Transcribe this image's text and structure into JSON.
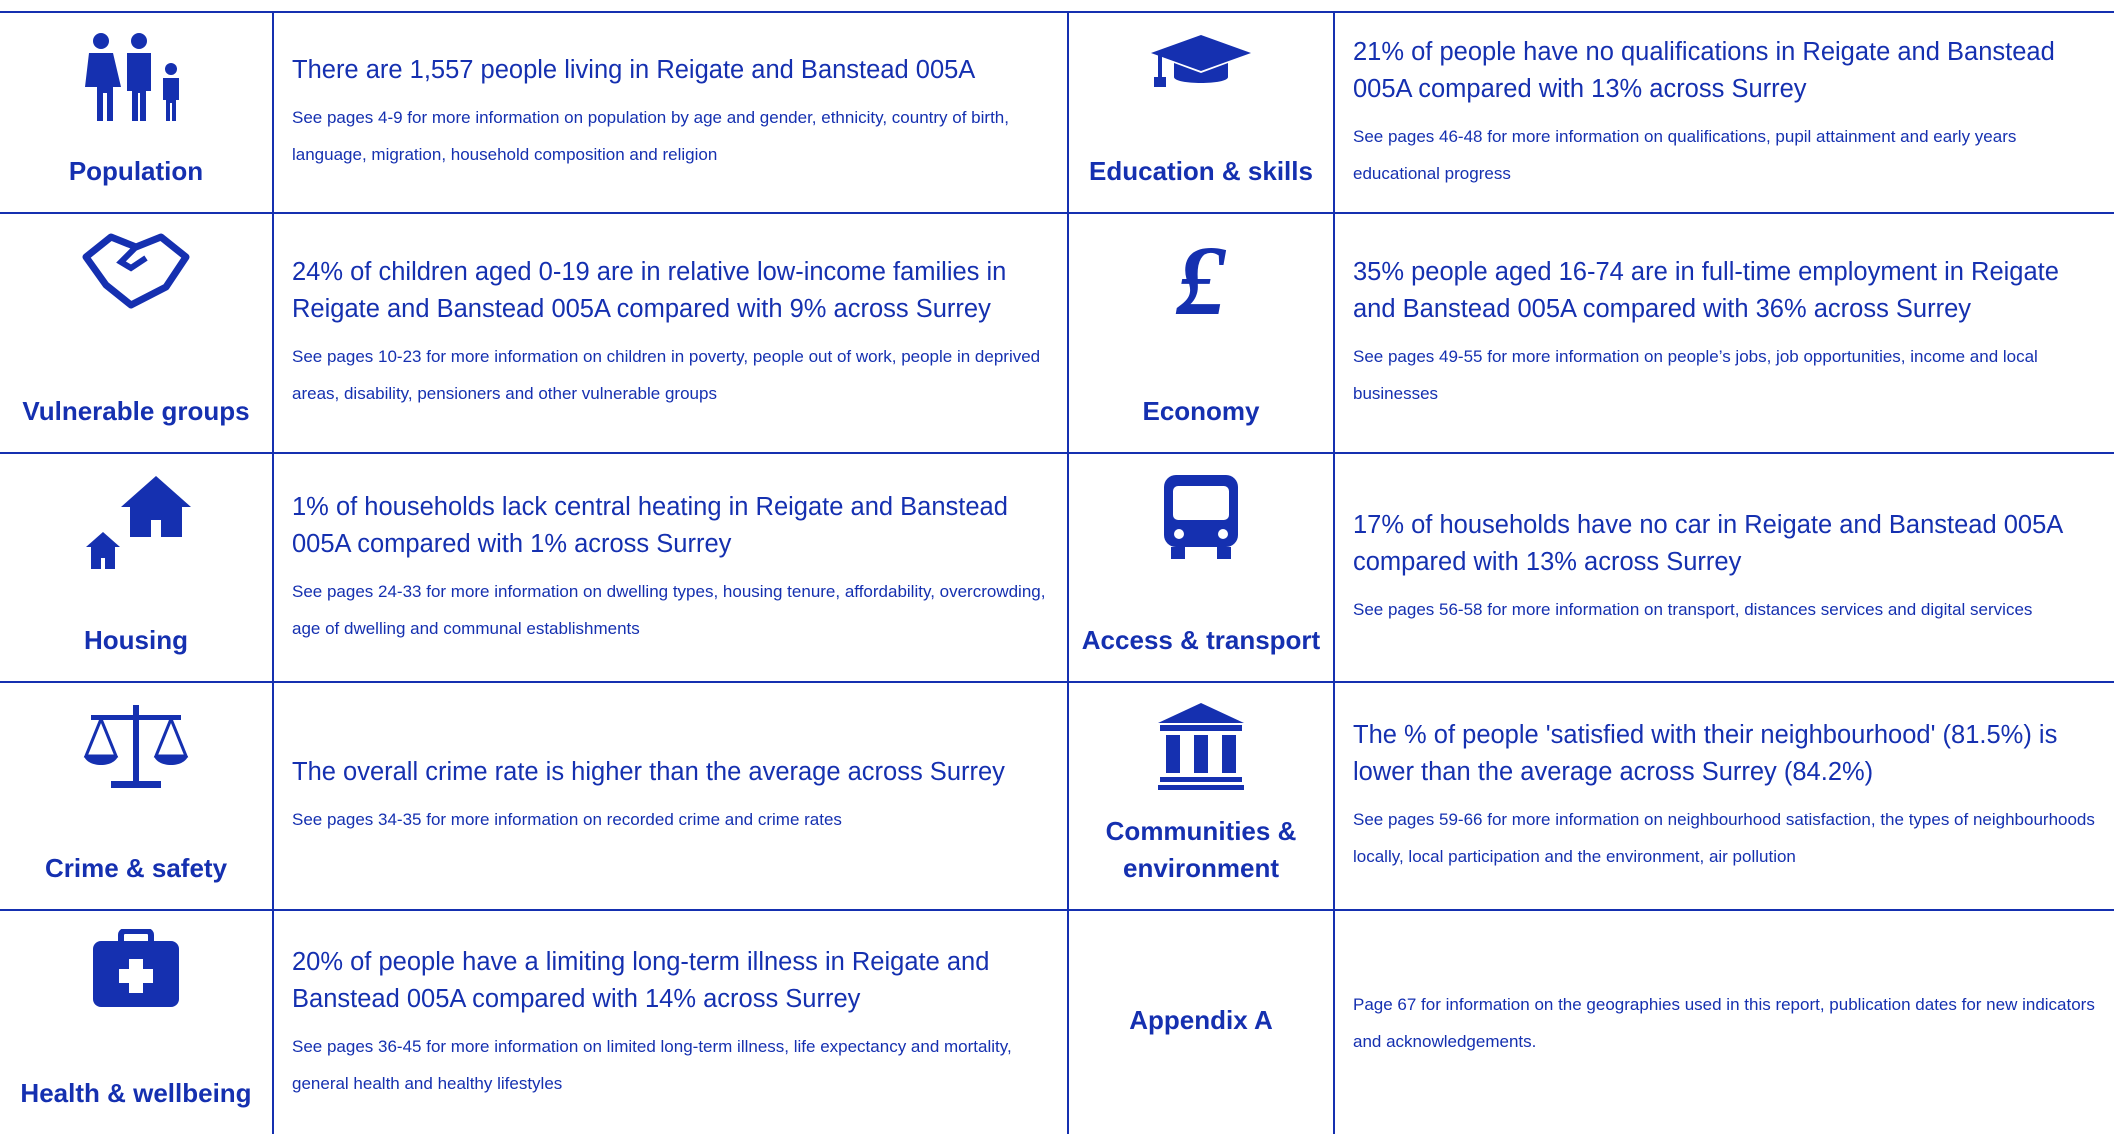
{
  "rows": [
    {
      "left": {
        "label": "Population",
        "headline": "There are 1,557 people living in Reigate and Banstead 005A",
        "detail": "See pages 4-9 for more information on population by age and gender, ethnicity, country of birth, language, migration, household composition and religion"
      },
      "right": {
        "label": "Education & skills",
        "headline": "21% of people have no qualifications in Reigate and Banstead 005A compared with 13% across Surrey",
        "detail": "See pages 46-48 for more information on qualifications, pupil attainment and early years educational progress"
      }
    },
    {
      "left": {
        "label": "Vulnerable groups",
        "headline": "24% of children aged 0-19 are in relative low-income families in Reigate and Banstead 005A compared with 9% across Surrey",
        "detail": "See pages 10-23 for more information on children in poverty, people out of work, people in deprived areas, disability, pensioners and other vulnerable groups"
      },
      "right": {
        "label": "Economy",
        "headline": "35% people aged 16-74 are in full-time employment in Reigate and Banstead 005A compared with 36% across Surrey",
        "detail": "See pages 49-55 for more information on people’s jobs, job opportunities, income and local businesses"
      }
    },
    {
      "left": {
        "label": "Housing",
        "headline": "1% of households lack central heating in Reigate and Banstead 005A compared with 1% across Surrey",
        "detail": "See pages 24-33 for more information on dwelling types, housing tenure, affordability, overcrowding, age of dwelling and communal establishments"
      },
      "right": {
        "label": "Access & transport",
        "headline": "17% of households have no car in Reigate and Banstead 005A compared with 13% across Surrey",
        "detail": "See pages 56-58 for more information on transport, distances services and digital services"
      }
    },
    {
      "left": {
        "label": "Crime & safety",
        "headline": "The overall crime rate is higher than the average across Surrey",
        "detail": "See pages 34-35 for more information on recorded crime and crime rates"
      },
      "right": {
        "label": "Communities & environment",
        "headline": "The % of people 'satisfied with their neighbourhood' (81.5%) is lower than the average across Surrey (84.2%)",
        "detail": "See pages 59-66 for more information on neighbourhood satisfaction, the types of neighbourhoods locally, local participation and the environment, air pollution"
      }
    },
    {
      "left": {
        "label": "Health & wellbeing",
        "headline": "20% of people have a limiting long-term illness in Reigate and Banstead 005A compared with 14% across Surrey",
        "detail": "See pages 36-45 for more information on limited long-term illness, life expectancy and mortality, general health and healthy lifestyles"
      },
      "right": {
        "label": "Appendix A",
        "detail": "Page 67 for information on the geographies used in this report, publication dates for new indicators and acknowledgements."
      }
    }
  ]
}
